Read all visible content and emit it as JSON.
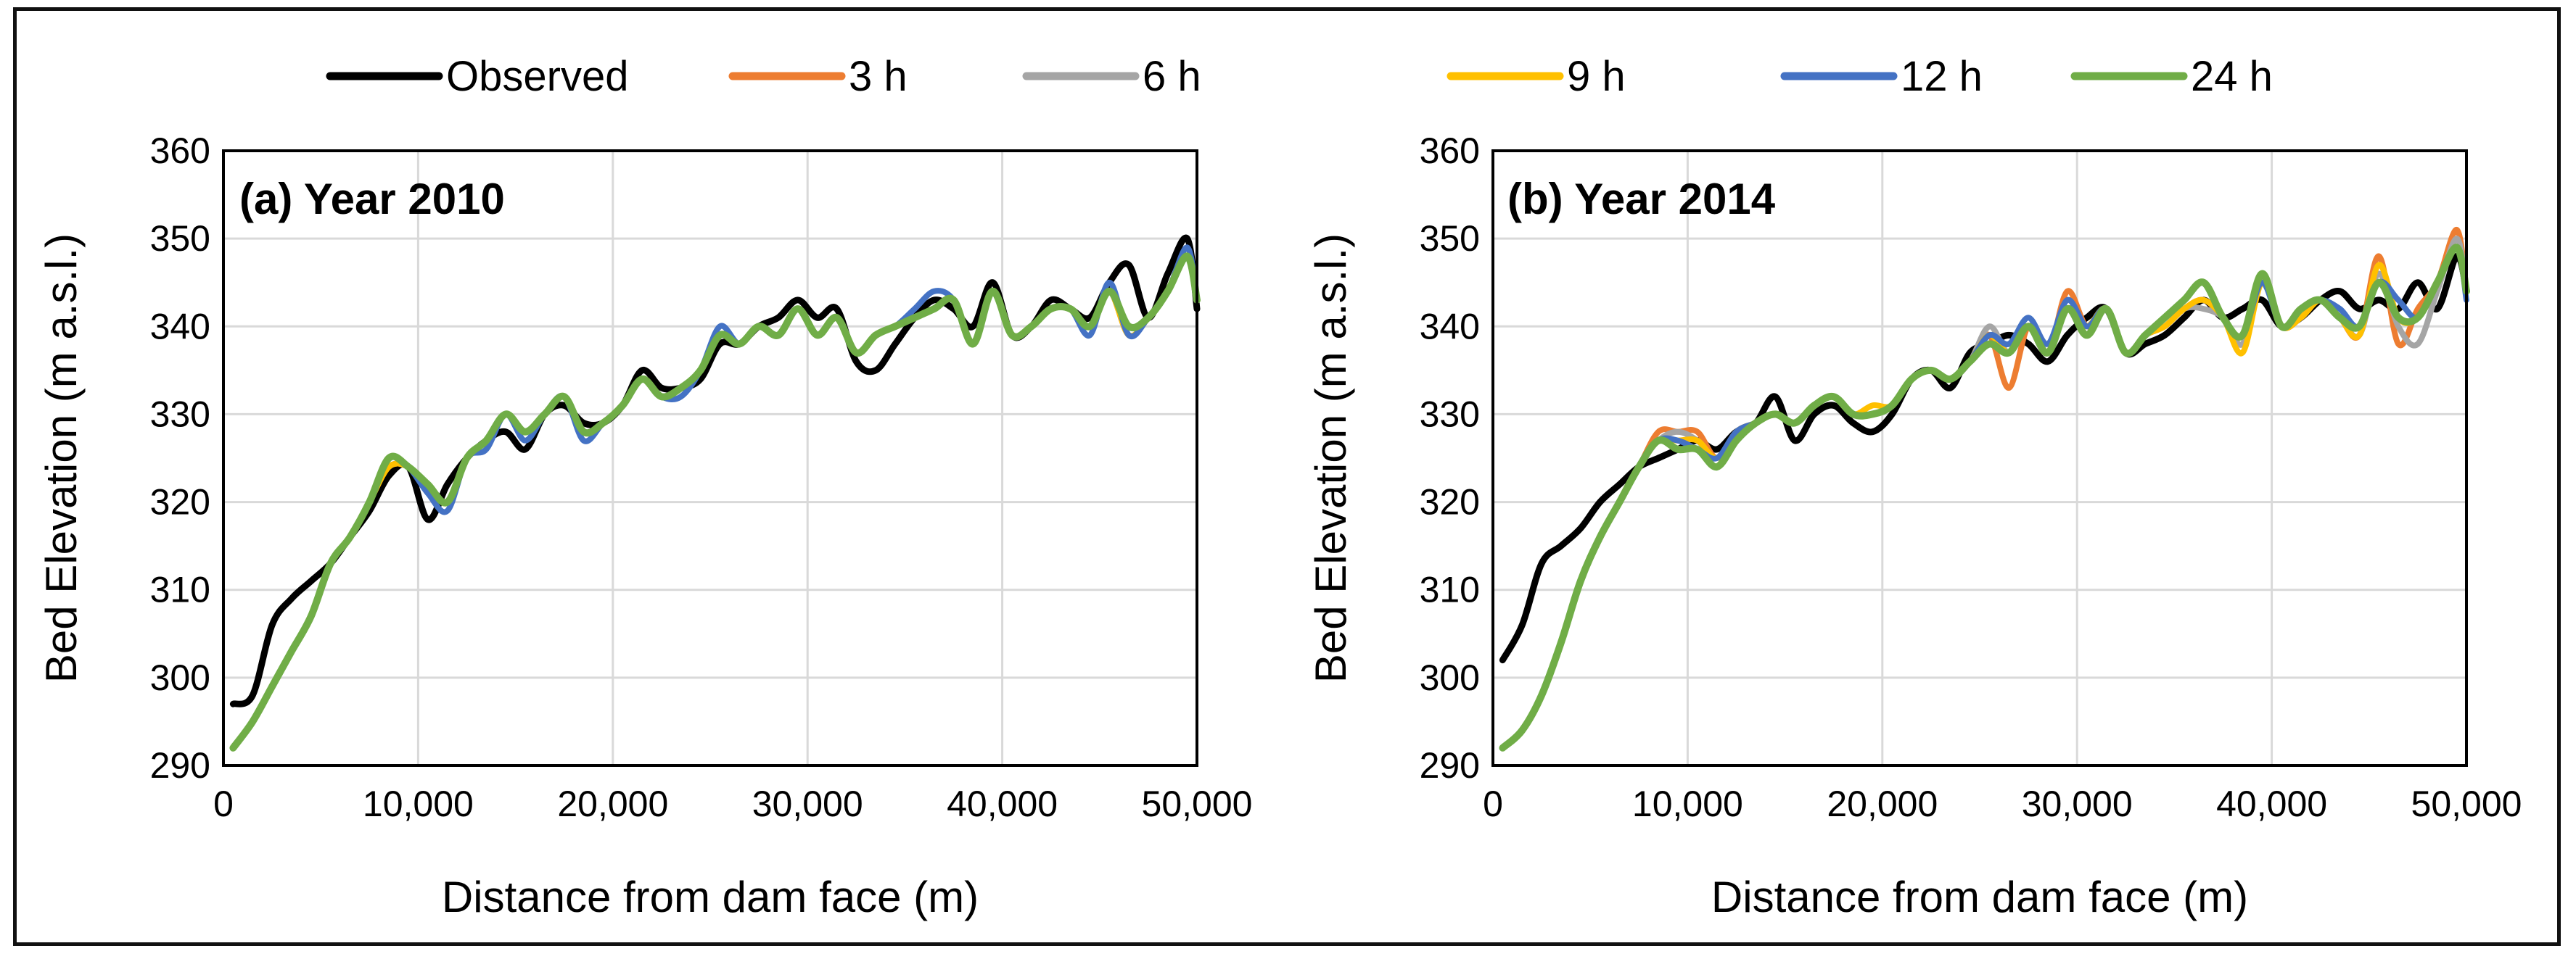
{
  "legend": [
    {
      "key": "observed",
      "label": "Observed",
      "color": "#000000"
    },
    {
      "key": "h3",
      "label": "3 h",
      "color": "#ED7D31"
    },
    {
      "key": "h6",
      "label": "6 h",
      "color": "#A5A5A5"
    },
    {
      "key": "h9",
      "label": "9 h",
      "color": "#FFC000"
    },
    {
      "key": "h12",
      "label": "12 h",
      "color": "#4472C4"
    },
    {
      "key": "h24",
      "label": "24 h",
      "color": "#70AD47"
    }
  ],
  "chart_data": [
    {
      "type": "line",
      "title": "(a) Year 2010",
      "xlabel": "Distance from dam face (m)",
      "ylabel": "Bed Elevation (m a.s.l.)",
      "xlim": [
        0,
        50000
      ],
      "ylim": [
        290,
        360
      ],
      "xticks": [
        "0",
        "10,000",
        "20,000",
        "30,000",
        "40,000",
        "50,000"
      ],
      "yticks": [
        "290",
        "300",
        "310",
        "320",
        "330",
        "340",
        "350",
        "360"
      ],
      "grid": true,
      "x": [
        500,
        1500,
        2500,
        3500,
        4500,
        5500,
        6500,
        7500,
        8500,
        9500,
        10500,
        11500,
        12500,
        13500,
        14500,
        15500,
        16500,
        17500,
        18500,
        19500,
        20500,
        21500,
        22500,
        23500,
        24500,
        25500,
        26500,
        27500,
        28500,
        29500,
        30500,
        31500,
        32500,
        33500,
        34500,
        35500,
        36500,
        37500,
        38500,
        39500,
        40500,
        41500,
        42500,
        43500,
        44500,
        45500,
        46500,
        47500,
        48500,
        49500,
        50000
      ],
      "series": [
        {
          "key": "observed",
          "values": [
            297,
            298,
            306,
            309,
            311,
            313,
            316,
            319,
            323,
            324,
            318,
            322,
            325,
            327,
            328,
            326,
            330,
            331,
            329,
            329,
            331,
            335,
            333,
            333,
            334,
            338,
            338,
            340,
            341,
            343,
            341,
            342,
            336,
            335,
            338,
            341,
            343,
            342,
            340,
            345,
            339,
            340,
            343,
            342,
            341,
            345,
            347,
            341,
            346,
            350,
            342
          ]
        },
        {
          "key": "h3",
          "values": [
            292,
            295,
            299,
            303,
            307,
            313,
            316,
            320,
            324,
            324,
            322,
            320,
            325,
            327,
            330,
            328,
            330,
            332,
            328,
            329,
            331,
            334,
            332,
            333,
            335,
            339,
            338,
            340,
            339,
            342,
            339,
            341,
            337,
            339,
            340,
            341,
            342,
            343,
            338,
            344,
            339,
            340,
            342,
            342,
            340,
            344,
            339,
            341,
            344,
            348,
            343
          ]
        },
        {
          "key": "h6",
          "values": [
            292,
            295,
            299,
            303,
            307,
            313,
            316,
            320,
            324,
            324,
            322,
            320,
            325,
            327,
            330,
            328,
            330,
            332,
            328,
            329,
            331,
            334,
            332,
            333,
            335,
            339,
            338,
            340,
            339,
            342,
            339,
            341,
            337,
            339,
            340,
            341,
            342,
            343,
            338,
            344,
            339,
            340,
            342,
            342,
            340,
            344,
            339,
            341,
            344,
            348,
            343
          ]
        },
        {
          "key": "h9",
          "values": [
            292,
            295,
            299,
            303,
            307,
            313,
            316,
            320,
            324,
            324,
            322,
            320,
            325,
            327,
            330,
            328,
            330,
            332,
            328,
            329,
            331,
            334,
            332,
            333,
            335,
            339,
            338,
            340,
            339,
            342,
            339,
            341,
            337,
            339,
            340,
            341,
            342,
            343,
            338,
            344,
            339,
            340,
            342,
            342,
            340,
            344,
            339,
            341,
            344,
            348,
            343
          ]
        },
        {
          "key": "h12",
          "values": [
            292,
            295,
            299,
            303,
            307,
            313,
            316,
            320,
            325,
            324,
            321,
            319,
            325,
            326,
            330,
            327,
            330,
            332,
            327,
            329,
            331,
            334,
            332,
            332,
            335,
            340,
            338,
            340,
            339,
            342,
            339,
            341,
            337,
            339,
            340,
            342,
            344,
            343,
            338,
            344,
            339,
            340,
            342,
            342,
            339,
            345,
            339,
            341,
            344,
            349,
            343
          ]
        },
        {
          "key": "h24",
          "values": [
            292,
            295,
            299,
            303,
            307,
            313,
            316,
            320,
            325,
            324,
            322,
            320,
            325,
            327,
            330,
            328,
            330,
            332,
            328,
            329,
            331,
            334,
            332,
            333,
            335,
            339,
            338,
            340,
            339,
            342,
            339,
            341,
            337,
            339,
            340,
            341,
            342,
            343,
            338,
            344,
            339,
            340,
            342,
            342,
            340,
            344,
            340,
            341,
            344,
            348,
            343
          ]
        }
      ]
    },
    {
      "type": "line",
      "title": "(b) Year 2014",
      "xlabel": "Distance from dam face (m)",
      "ylabel": "Bed Elevation (m a.s.l.)",
      "xlim": [
        0,
        50000
      ],
      "ylim": [
        290,
        360
      ],
      "xticks": [
        "0",
        "10,000",
        "20,000",
        "30,000",
        "40,000",
        "50,000"
      ],
      "yticks": [
        "290",
        "300",
        "310",
        "320",
        "330",
        "340",
        "350",
        "360"
      ],
      "grid": true,
      "x": [
        500,
        1500,
        2500,
        3500,
        4500,
        5500,
        6500,
        7500,
        8500,
        9500,
        10500,
        11500,
        12500,
        13500,
        14500,
        15500,
        16500,
        17500,
        18500,
        19500,
        20500,
        21500,
        22500,
        23500,
        24500,
        25500,
        26500,
        27500,
        28500,
        29500,
        30500,
        31500,
        32500,
        33500,
        34500,
        35500,
        36500,
        37500,
        38500,
        39500,
        40500,
        41500,
        42500,
        43500,
        44500,
        45500,
        46500,
        47500,
        48500,
        49500,
        50000
      ],
      "series": [
        {
          "key": "observed",
          "values": [
            302,
            306,
            313,
            315,
            317,
            320,
            322,
            324,
            325,
            326,
            327,
            326,
            328,
            329,
            332,
            327,
            330,
            331,
            329,
            328,
            330,
            334,
            335,
            333,
            337,
            338,
            339,
            338,
            336,
            339,
            341,
            342,
            337,
            338,
            339,
            341,
            343,
            341,
            342,
            343,
            340,
            341,
            343,
            344,
            342,
            343,
            342,
            345,
            342,
            348,
            344
          ]
        },
        {
          "key": "h3",
          "values": [
            292,
            294,
            298,
            304,
            311,
            316,
            320,
            324,
            328,
            328,
            328,
            325,
            328,
            329,
            330,
            329,
            331,
            332,
            330,
            330,
            331,
            334,
            335,
            334,
            336,
            339,
            333,
            340,
            337,
            344,
            340,
            342,
            337,
            339,
            340,
            342,
            343,
            341,
            338,
            345,
            340,
            341,
            343,
            341,
            339,
            348,
            338,
            342,
            345,
            351,
            344
          ]
        },
        {
          "key": "h6",
          "values": [
            292,
            294,
            298,
            304,
            311,
            316,
            320,
            324,
            327,
            328,
            327,
            325,
            328,
            329,
            330,
            329,
            331,
            332,
            330,
            330,
            331,
            334,
            335,
            334,
            336,
            340,
            337,
            340,
            337,
            342,
            340,
            342,
            337,
            339,
            340,
            342,
            342,
            341,
            338,
            345,
            340,
            341,
            343,
            341,
            339,
            346,
            340,
            338,
            344,
            350,
            344
          ]
        },
        {
          "key": "h9",
          "values": [
            292,
            294,
            298,
            304,
            311,
            316,
            320,
            324,
            327,
            327,
            327,
            325,
            328,
            329,
            330,
            329,
            331,
            332,
            330,
            331,
            331,
            334,
            335,
            334,
            336,
            339,
            337,
            340,
            337,
            342,
            340,
            342,
            337,
            339,
            340,
            342,
            343,
            341,
            337,
            345,
            340,
            341,
            343,
            341,
            339,
            347,
            341,
            341,
            345,
            349,
            344
          ]
        },
        {
          "key": "h12",
          "values": [
            292,
            294,
            298,
            304,
            311,
            316,
            320,
            324,
            327,
            327,
            326,
            325,
            328,
            329,
            330,
            329,
            331,
            332,
            330,
            330,
            331,
            334,
            335,
            334,
            336,
            339,
            338,
            341,
            338,
            343,
            340,
            342,
            337,
            339,
            341,
            343,
            345,
            341,
            339,
            345,
            340,
            342,
            343,
            342,
            340,
            345,
            343,
            341,
            345,
            349,
            343
          ]
        },
        {
          "key": "h24",
          "values": [
            292,
            294,
            298,
            304,
            311,
            316,
            320,
            324,
            327,
            326,
            326,
            324,
            327,
            329,
            330,
            329,
            331,
            332,
            330,
            330,
            331,
            334,
            335,
            334,
            336,
            338,
            337,
            340,
            337,
            342,
            339,
            342,
            337,
            339,
            341,
            343,
            345,
            341,
            339,
            346,
            340,
            342,
            343,
            341,
            340,
            345,
            341,
            341,
            345,
            349,
            344
          ]
        }
      ]
    }
  ]
}
